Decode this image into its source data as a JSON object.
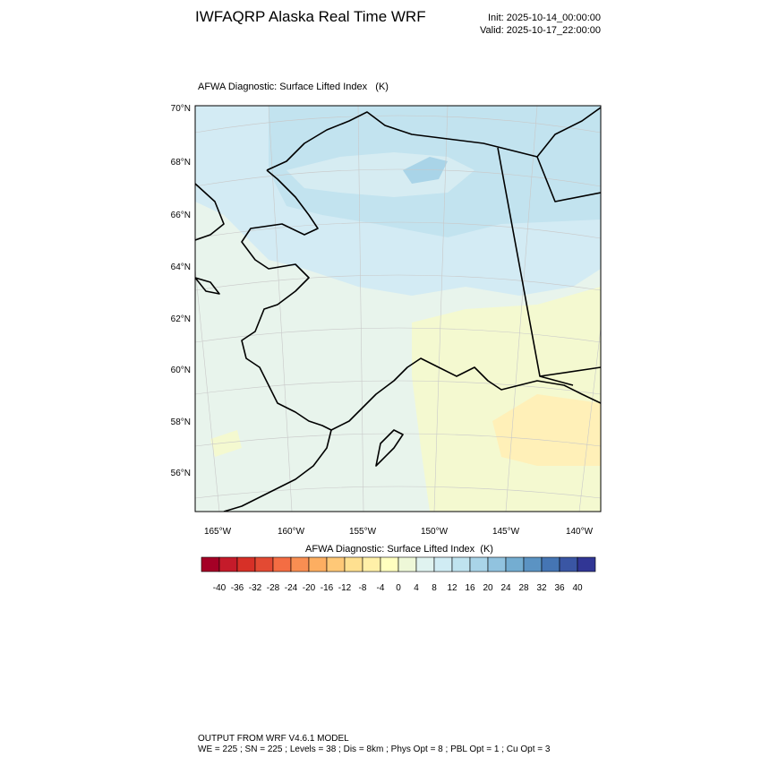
{
  "header": {
    "title": "IWFAQRP Alaska Real Time WRF",
    "init": "Init: 2025-10-14_00:00:00",
    "valid": "Valid: 2025-10-17_22:00:00"
  },
  "map": {
    "subtitle": "AFWA Diagnostic: Surface Lifted Index   (K)",
    "lat_labels": [
      "70°N",
      "68°N",
      "66°N",
      "64°N",
      "62°N",
      "60°N",
      "58°N",
      "56°N"
    ],
    "lon_labels": [
      "165°W",
      "160°W",
      "155°W",
      "150°W",
      "145°W",
      "140°W"
    ]
  },
  "colorbar": {
    "title": "AFWA Diagnostic: Surface Lifted Index  (K)",
    "labels": [
      -40,
      -36,
      -32,
      -28,
      -24,
      -20,
      -16,
      -12,
      -8,
      -4,
      0,
      4,
      8,
      12,
      16,
      20,
      24,
      28,
      32,
      36,
      40
    ],
    "colors": [
      "#a50026",
      "#c51b2a",
      "#d73027",
      "#e34a33",
      "#f46d43",
      "#f98e52",
      "#fdae61",
      "#fec877",
      "#fee090",
      "#fff0a8",
      "#ffffbf",
      "#eef8d8",
      "#e0f3f0",
      "#d0ecf4",
      "#bfe3ef",
      "#a9d4e8",
      "#91c3df",
      "#74add1",
      "#5b93c3",
      "#4575b4",
      "#3a56a4",
      "#313695"
    ]
  },
  "footer": {
    "line1": "OUTPUT FROM WRF V4.6.1 MODEL",
    "line2": "WE = 225 ; SN = 225 ; Levels = 38 ; Dis = 8km ; Phys Opt = 8 ; PBL Opt = 1 ; Cu Opt = 3"
  }
}
